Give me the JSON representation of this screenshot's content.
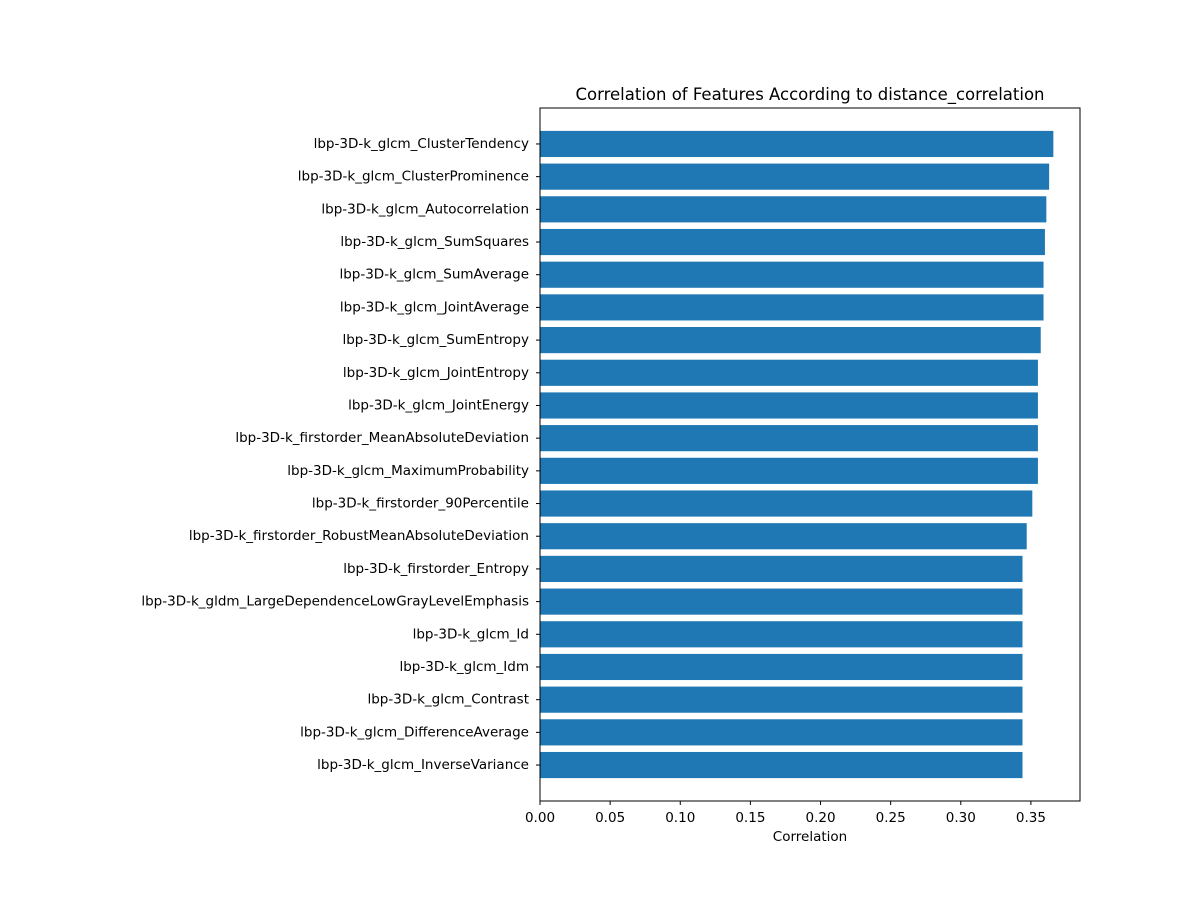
{
  "chart_data": {
    "type": "bar",
    "orientation": "horizontal",
    "title": "Correlation of Features According to distance_correlation",
    "xlabel": "Correlation",
    "ylabel": "",
    "xlim": [
      0,
      0.385
    ],
    "xticks": [
      0.0,
      0.05,
      0.1,
      0.15,
      0.2,
      0.25,
      0.3,
      0.35
    ],
    "xtick_labels": [
      "0.00",
      "0.05",
      "0.10",
      "0.15",
      "0.20",
      "0.25",
      "0.30",
      "0.35"
    ],
    "grid": false,
    "bar_color": "#1f77b4",
    "categories": [
      "lbp-3D-k_glcm_ClusterTendency",
      "lbp-3D-k_glcm_ClusterProminence",
      "lbp-3D-k_glcm_Autocorrelation",
      "lbp-3D-k_glcm_SumSquares",
      "lbp-3D-k_glcm_SumAverage",
      "lbp-3D-k_glcm_JointAverage",
      "lbp-3D-k_glcm_SumEntropy",
      "lbp-3D-k_glcm_JointEntropy",
      "lbp-3D-k_glcm_JointEnergy",
      "lbp-3D-k_firstorder_MeanAbsoluteDeviation",
      "lbp-3D-k_glcm_MaximumProbability",
      "lbp-3D-k_firstorder_90Percentile",
      "lbp-3D-k_firstorder_RobustMeanAbsoluteDeviation",
      "lbp-3D-k_firstorder_Entropy",
      "lbp-3D-k_gldm_LargeDependenceLowGrayLevelEmphasis",
      "lbp-3D-k_glcm_Id",
      "lbp-3D-k_glcm_Idm",
      "lbp-3D-k_glcm_Contrast",
      "lbp-3D-k_glcm_DifferenceAverage",
      "lbp-3D-k_glcm_InverseVariance"
    ],
    "values": [
      0.366,
      0.363,
      0.361,
      0.36,
      0.359,
      0.359,
      0.357,
      0.355,
      0.355,
      0.355,
      0.355,
      0.351,
      0.347,
      0.344,
      0.344,
      0.344,
      0.344,
      0.344,
      0.344,
      0.344
    ]
  }
}
